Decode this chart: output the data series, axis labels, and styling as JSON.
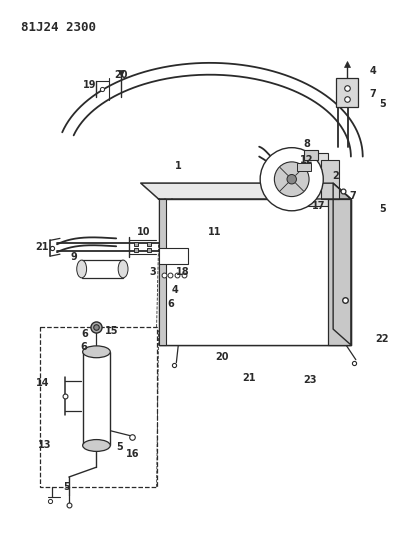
{
  "title": "81J24 2300",
  "bg_color": "#ffffff",
  "line_color": "#2a2a2a",
  "title_fontsize": 9,
  "label_fontsize": 7,
  "figsize": [
    4.01,
    5.33
  ],
  "dpi": 100
}
